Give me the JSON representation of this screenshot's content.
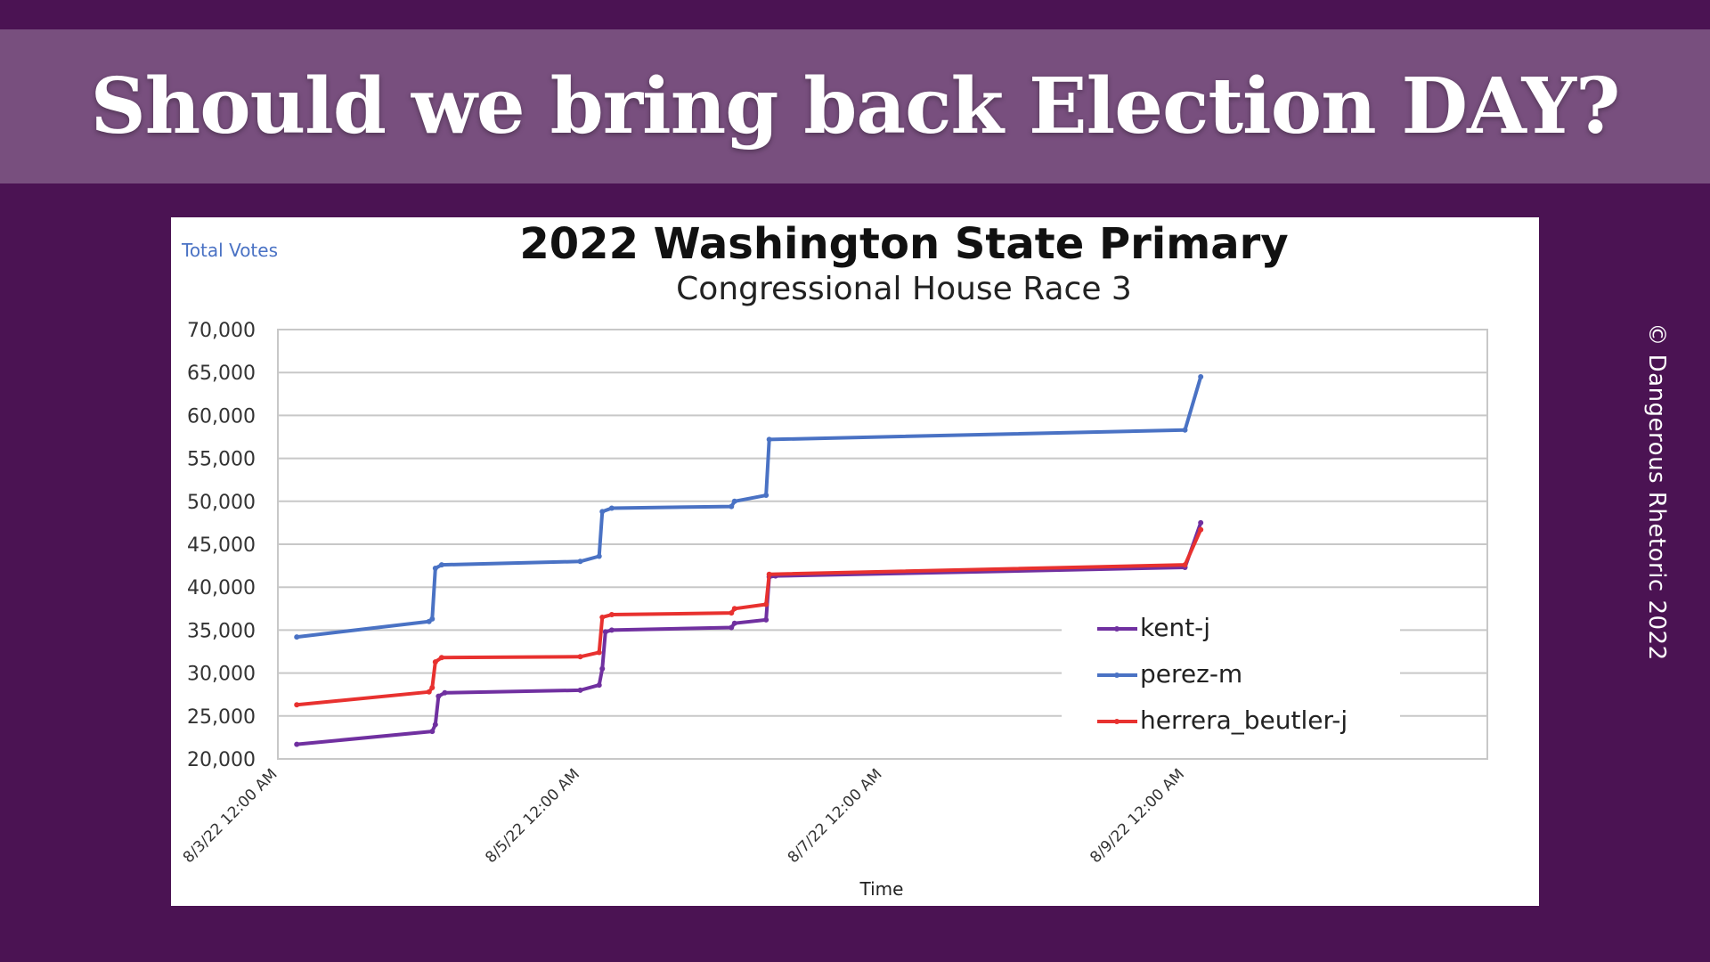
{
  "banner": {
    "headline": "Should we bring back Election DAY?"
  },
  "copyright": "© Dangerous Rhetoric 2022",
  "colors": {
    "background": "#4b1353",
    "banner": "#784f7e",
    "kent": "#7030a0",
    "perez": "#4a72c4",
    "herrera": "#e8312f"
  },
  "chart_data": {
    "type": "line",
    "title": "2022 Washington State Primary",
    "subtitle": "Congressional House Race 3",
    "ylabel": "Total Votes",
    "xlabel": "Time",
    "ylim": [
      20000,
      70000
    ],
    "yticks": [
      "20,000",
      "25,000",
      "30,000",
      "35,000",
      "40,000",
      "45,000",
      "50,000",
      "55,000",
      "60,000",
      "65,000",
      "70,000"
    ],
    "xlim": [
      "8/3/22 12:00 AM",
      "8/11/22 12:00 AM"
    ],
    "xticks": [
      "8/3/22 12:00 AM",
      "8/5/22 12:00 AM",
      "8/7/22 12:00 AM",
      "8/9/22 12:00 AM"
    ],
    "grid": true,
    "legend_position": "right",
    "series": [
      {
        "name": "kent-j",
        "color": "#7030a0",
        "points": [
          [
            "8/3/22 3:00 AM",
            21700
          ],
          [
            "8/4/22 12:30 AM",
            23200
          ],
          [
            "8/4/22 1:00 AM",
            24000
          ],
          [
            "8/4/22 1:30 AM",
            27300
          ],
          [
            "8/4/22 2:30 AM",
            27700
          ],
          [
            "8/5/22 12:00 AM",
            28000
          ],
          [
            "8/5/22 3:00 AM",
            28600
          ],
          [
            "8/5/22 3:30 AM",
            30500
          ],
          [
            "8/5/22 4:00 AM",
            34800
          ],
          [
            "8/5/22 5:00 AM",
            35000
          ],
          [
            "8/6/22 12:00 AM",
            35300
          ],
          [
            "8/6/22 12:30 AM",
            35800
          ],
          [
            "8/6/22 5:30 AM",
            36200
          ],
          [
            "8/6/22 6:00 AM",
            41200
          ],
          [
            "8/6/22 7:00 AM",
            41300
          ],
          [
            "8/9/22 12:00 AM",
            42300
          ],
          [
            "8/9/22 2:30 AM",
            47500
          ]
        ]
      },
      {
        "name": "perez-m",
        "color": "#4a72c4",
        "points": [
          [
            "8/3/22 3:00 AM",
            34200
          ],
          [
            "8/4/22 12:00 AM",
            36000
          ],
          [
            "8/4/22 12:30 AM",
            36300
          ],
          [
            "8/4/22 1:00 AM",
            42200
          ],
          [
            "8/4/22 2:00 AM",
            42600
          ],
          [
            "8/5/22 12:00 AM",
            43000
          ],
          [
            "8/5/22 3:00 AM",
            43600
          ],
          [
            "8/5/22 3:30 AM",
            48800
          ],
          [
            "8/5/22 5:00 AM",
            49200
          ],
          [
            "8/6/22 12:00 AM",
            49400
          ],
          [
            "8/6/22 12:30 AM",
            50000
          ],
          [
            "8/6/22 5:30 AM",
            50700
          ],
          [
            "8/6/22 6:00 AM",
            57200
          ],
          [
            "8/9/22 12:00 AM",
            58300
          ],
          [
            "8/9/22 2:30 AM",
            64500
          ]
        ]
      },
      {
        "name": "herrera_beutler-j",
        "color": "#e8312f",
        "points": [
          [
            "8/3/22 3:00 AM",
            26300
          ],
          [
            "8/4/22 12:00 AM",
            27800
          ],
          [
            "8/4/22 12:30 AM",
            28300
          ],
          [
            "8/4/22 1:00 AM",
            31300
          ],
          [
            "8/4/22 2:00 AM",
            31800
          ],
          [
            "8/5/22 12:00 AM",
            31900
          ],
          [
            "8/5/22 3:00 AM",
            32400
          ],
          [
            "8/5/22 3:30 AM",
            36500
          ],
          [
            "8/5/22 5:00 AM",
            36800
          ],
          [
            "8/6/22 12:00 AM",
            37000
          ],
          [
            "8/6/22 12:30 AM",
            37500
          ],
          [
            "8/6/22 5:30 AM",
            38000
          ],
          [
            "8/6/22 6:00 AM",
            41500
          ],
          [
            "8/9/22 12:00 AM",
            42600
          ],
          [
            "8/9/22 2:30 AM",
            46700
          ]
        ]
      }
    ]
  }
}
